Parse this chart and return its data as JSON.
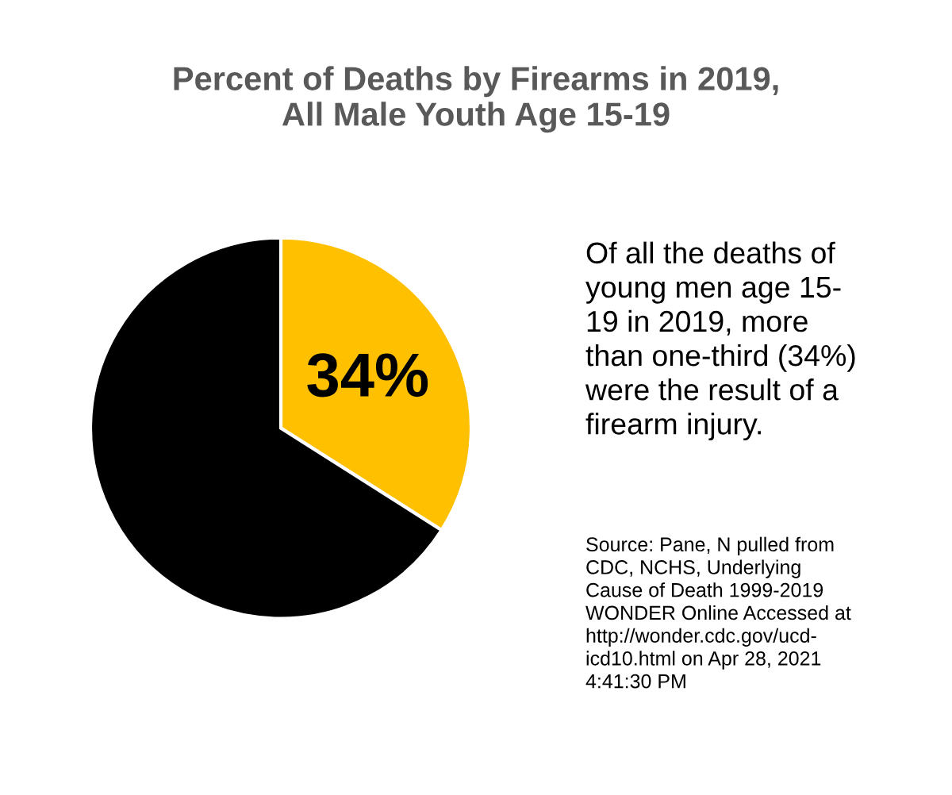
{
  "chart_data": {
    "type": "pie",
    "title": "Percent of Deaths by Firearms in 2019,\nAll Male Youth Age 15-19",
    "categories": [
      null,
      null
    ],
    "values": [
      34,
      66
    ],
    "colors": [
      "#ffc000",
      "#000000"
    ],
    "value_labels": [
      "34%",
      null
    ],
    "annotations": [
      "Of all the deaths of\nyoung men age 15-\n19 in 2019, more\nthan one-third (34%)\nwere the result of a\nfirearm injury.",
      "Source: Pane, N pulled from\nCDC, NCHS, Underlying\nCause of Death 1999-2019\nWONDER Online Accessed at\nhttp://wonder.cdc.gov/ucd-\nicd10.html on Apr 28, 2021\n4:41:30 PM"
    ]
  }
}
